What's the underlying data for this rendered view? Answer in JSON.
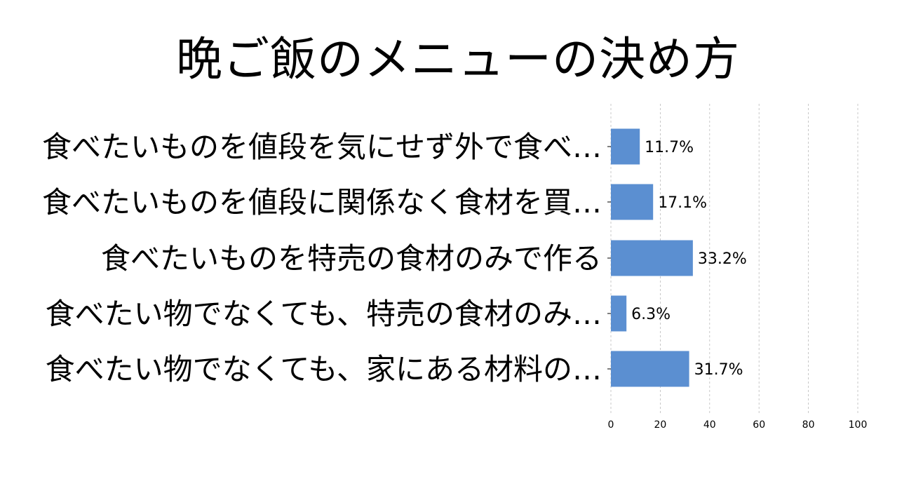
{
  "chart_data": {
    "type": "bar",
    "orientation": "horizontal",
    "title": "晩ご飯のメニューの決め方",
    "categories": [
      "食べたいものを値段を気にせず外で食べ…",
      "食べたいものを値段に関係なく食材を買…",
      "食べたいものを特売の食材のみで作る",
      "食べたい物でなくても、特売の食材のみ…",
      "食べたい物でなくても、家にある材料の…"
    ],
    "values": [
      11.7,
      17.1,
      33.2,
      6.3,
      31.7
    ],
    "data_labels": [
      "11.7%",
      "17.1%",
      "33.2%",
      "6.3%",
      "31.7%"
    ],
    "xlim": [
      0,
      100
    ],
    "xticks": [
      0,
      20,
      40,
      60,
      80,
      100
    ],
    "xtick_labels": [
      "0",
      "20",
      "40",
      "60",
      "80",
      "100"
    ],
    "bar_color": "#5b8fd1",
    "grid": true
  }
}
